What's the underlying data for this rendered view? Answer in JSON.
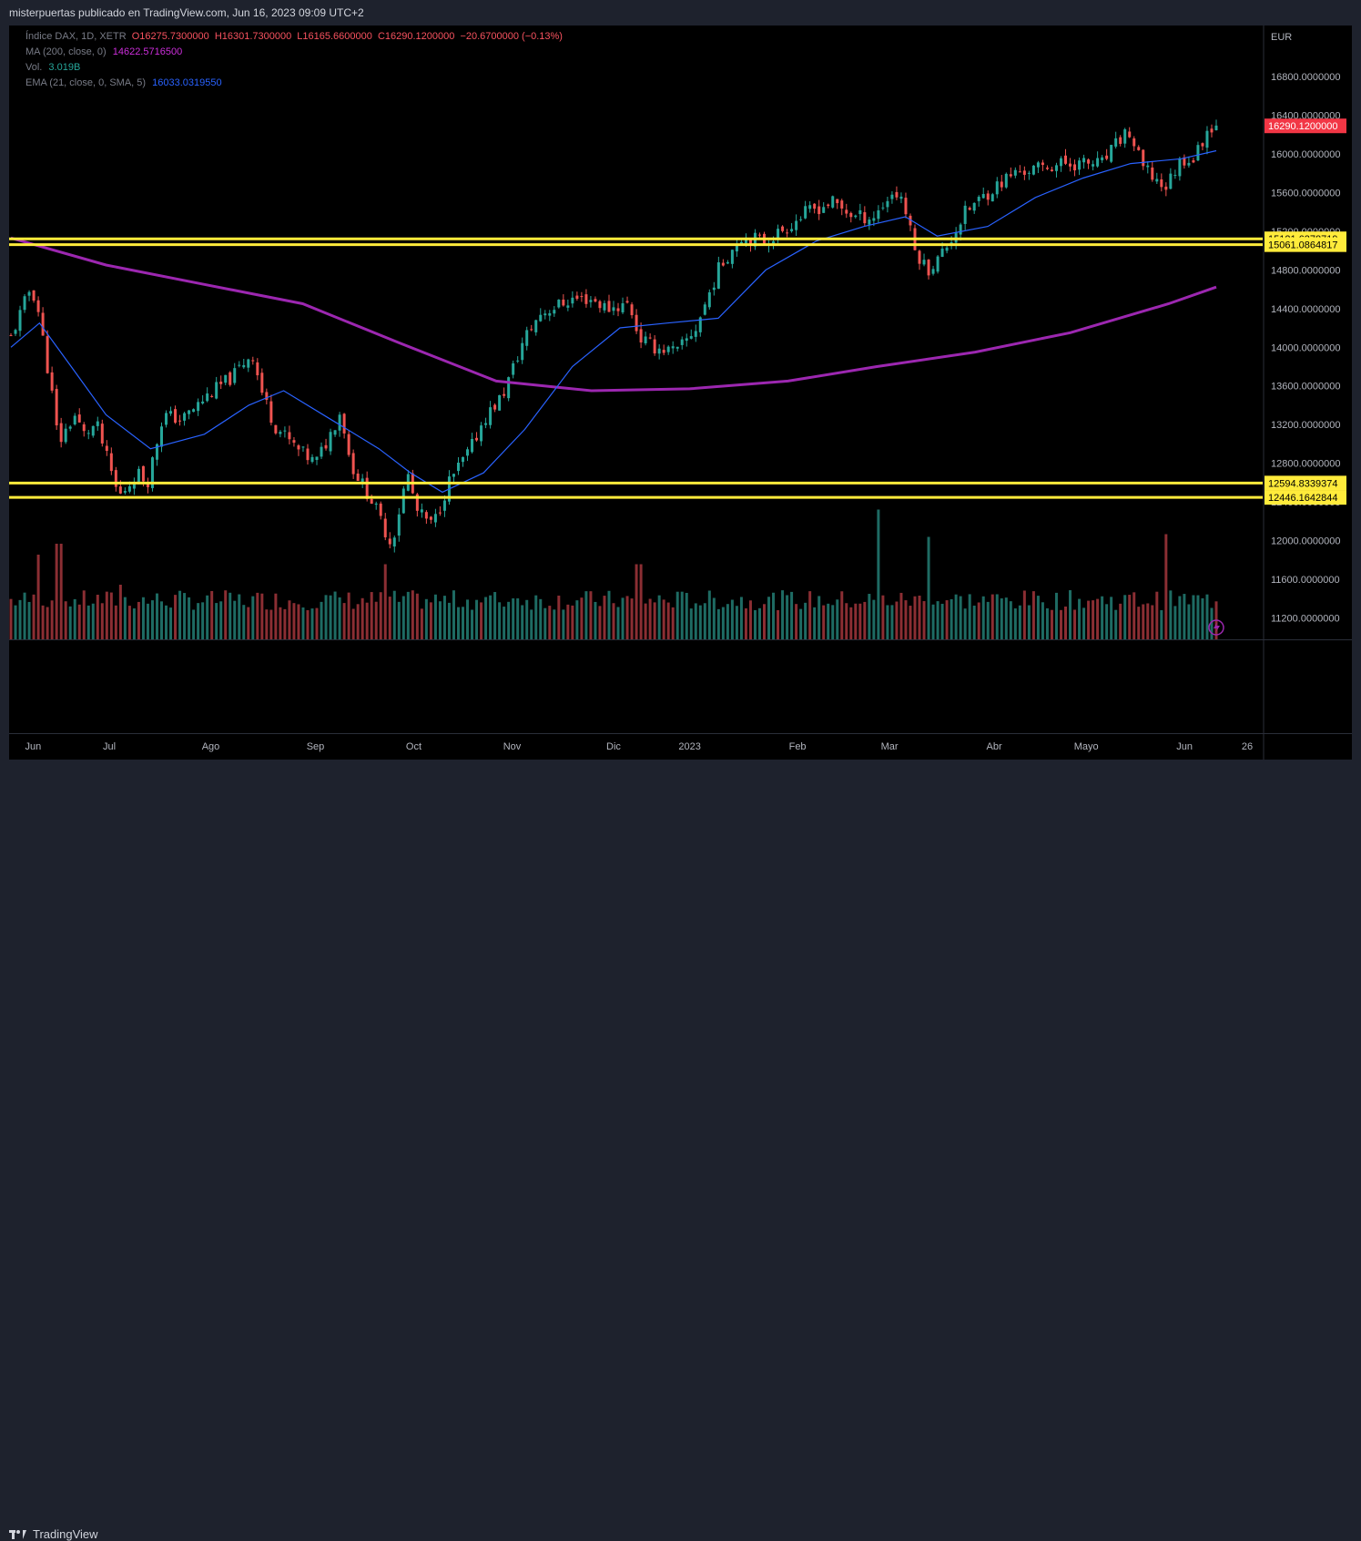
{
  "header": {
    "text": "misterpuertas publicado en TradingView.com, Jun 16, 2023 09:09 UTC+2"
  },
  "legend": {
    "symbol": {
      "label": "Índice DAX, 1D, XETR",
      "values": [
        "O16275.7300000",
        "H16301.7300000",
        "L16165.6600000",
        "C16290.1200000",
        "−20.6700000 (−0.13%)"
      ],
      "color": "#f7525f"
    },
    "ma": {
      "label": "MA (200, close, 0)",
      "value": "14622.5716500",
      "color": "#cc2edb"
    },
    "vol": {
      "label": "Vol.",
      "value": "3.019B",
      "color": "#26a69a"
    },
    "ema": {
      "label": "EMA (21, close, 0, SMA, 5)",
      "value": "16033.0319550",
      "color": "#2962ff"
    }
  },
  "footer": {
    "brand": "TradingView"
  },
  "colors": {
    "up": "#26a69a",
    "down": "#ef5350",
    "vol_up": "#1e6b63",
    "vol_down": "#8b2e33",
    "level": "#ffeb3b",
    "ma200": "#9c27b0",
    "ema21": "#2962ff"
  },
  "chart_data": {
    "type": "candlestick",
    "currency": "EUR",
    "y_ticks": [
      "16800.0000000",
      "16400.0000000",
      "16000.0000000",
      "15600.0000000",
      "15200.0000000",
      "14800.0000000",
      "14400.0000000",
      "14000.0000000",
      "13600.0000000",
      "13200.0000000",
      "12800.0000000",
      "12400.0000000",
      "12000.0000000",
      "11600.0000000",
      "11200.0000000"
    ],
    "x_ticks": [
      "Jun",
      "Jul",
      "Ago",
      "Sep",
      "Oct",
      "Nov",
      "Dic",
      "2023",
      "Feb",
      "Mar",
      "Abr",
      "Mayo",
      "Jun",
      "26"
    ],
    "last_price": "16290.1200000",
    "horizontal_levels": [
      {
        "value": 15121.6378719,
        "label": "15121.6378719"
      },
      {
        "value": 15061.0864817,
        "label": "15061.0864817"
      },
      {
        "value": 12594.8339374,
        "label": "12594.8339374"
      },
      {
        "value": 12446.1642844,
        "label": "12446.1642844"
      }
    ],
    "close_path": [
      [
        "2022-06-01",
        14100
      ],
      [
        "2022-06-07",
        14600
      ],
      [
        "2022-06-09",
        14500
      ],
      [
        "2022-06-14",
        13500
      ],
      [
        "2022-06-16",
        13000
      ],
      [
        "2022-06-21",
        13300
      ],
      [
        "2022-06-24",
        13100
      ],
      [
        "2022-06-28",
        13200
      ],
      [
        "2022-07-05",
        12450
      ],
      [
        "2022-07-11",
        12700
      ],
      [
        "2022-07-14",
        12600
      ],
      [
        "2022-07-19",
        13300
      ],
      [
        "2022-07-25",
        13250
      ],
      [
        "2022-08-02",
        13500
      ],
      [
        "2022-08-10",
        13700
      ],
      [
        "2022-08-16",
        13950
      ],
      [
        "2022-08-19",
        13550
      ],
      [
        "2022-08-23",
        13200
      ],
      [
        "2022-08-30",
        12950
      ],
      [
        "2022-09-05",
        12800
      ],
      [
        "2022-09-09",
        13050
      ],
      [
        "2022-09-13",
        13350
      ],
      [
        "2022-09-16",
        12800
      ],
      [
        "2022-09-23",
        12400
      ],
      [
        "2022-09-29",
        11950
      ],
      [
        "2022-10-04",
        12700
      ],
      [
        "2022-10-07",
        12300
      ],
      [
        "2022-10-12",
        12150
      ],
      [
        "2022-10-17",
        12600
      ],
      [
        "2022-10-24",
        12950
      ],
      [
        "2022-10-28",
        13250
      ],
      [
        "2022-11-03",
        13500
      ],
      [
        "2022-11-10",
        14100
      ],
      [
        "2022-11-15",
        14350
      ],
      [
        "2022-11-25",
        14500
      ],
      [
        "2022-12-01",
        14500
      ],
      [
        "2022-12-06",
        14400
      ],
      [
        "2022-12-13",
        14450
      ],
      [
        "2022-12-16",
        14100
      ],
      [
        "2022-12-21",
        14000
      ],
      [
        "2022-12-28",
        13950
      ],
      [
        "2023-01-03",
        14200
      ],
      [
        "2023-01-10",
        14800
      ],
      [
        "2023-01-17",
        15150
      ],
      [
        "2023-01-25",
        15100
      ],
      [
        "2023-02-01",
        15250
      ],
      [
        "2023-02-07",
        15400
      ],
      [
        "2023-02-15",
        15500
      ],
      [
        "2023-02-22",
        15350
      ],
      [
        "2023-02-28",
        15350
      ],
      [
        "2023-03-06",
        15600
      ],
      [
        "2023-03-09",
        15550
      ],
      [
        "2023-03-13",
        15000
      ],
      [
        "2023-03-17",
        14800
      ],
      [
        "2023-03-20",
        14900
      ],
      [
        "2023-03-24",
        15100
      ],
      [
        "2023-03-29",
        15400
      ],
      [
        "2023-04-05",
        15600
      ],
      [
        "2023-04-13",
        15800
      ],
      [
        "2023-04-21",
        15850
      ],
      [
        "2023-04-28",
        15900
      ],
      [
        "2023-05-05",
        15900
      ],
      [
        "2023-05-11",
        15900
      ],
      [
        "2023-05-19",
        16250
      ],
      [
        "2023-05-24",
        15850
      ],
      [
        "2023-05-31",
        15650
      ],
      [
        "2023-06-05",
        15950
      ],
      [
        "2023-06-09",
        15950
      ],
      [
        "2023-06-14",
        16300
      ],
      [
        "2023-06-16",
        16290
      ]
    ],
    "ma200_path": [
      [
        "2022-06-01",
        15130
      ],
      [
        "2022-07-01",
        14850
      ],
      [
        "2022-08-01",
        14650
      ],
      [
        "2022-09-01",
        14450
      ],
      [
        "2022-10-01",
        14050
      ],
      [
        "2022-11-01",
        13650
      ],
      [
        "2022-12-01",
        13550
      ],
      [
        "2023-01-01",
        13570
      ],
      [
        "2023-02-01",
        13650
      ],
      [
        "2023-03-01",
        13800
      ],
      [
        "2023-04-01",
        13950
      ],
      [
        "2023-05-01",
        14150
      ],
      [
        "2023-06-01",
        14450
      ],
      [
        "2023-06-16",
        14622.57
      ]
    ],
    "ema21_path": [
      [
        "2022-06-01",
        14000
      ],
      [
        "2022-06-10",
        14250
      ],
      [
        "2022-06-20",
        13800
      ],
      [
        "2022-07-01",
        13300
      ],
      [
        "2022-07-15",
        12950
      ],
      [
        "2022-08-01",
        13100
      ],
      [
        "2022-08-15",
        13400
      ],
      [
        "2022-08-26",
        13550
      ],
      [
        "2022-09-10",
        13250
      ],
      [
        "2022-09-25",
        12950
      ],
      [
        "2022-10-05",
        12700
      ],
      [
        "2022-10-15",
        12500
      ],
      [
        "2022-10-28",
        12700
      ],
      [
        "2022-11-10",
        13150
      ],
      [
        "2022-11-25",
        13800
      ],
      [
        "2022-12-10",
        14200
      ],
      [
        "2022-12-25",
        14250
      ],
      [
        "2023-01-10",
        14300
      ],
      [
        "2023-01-25",
        14800
      ],
      [
        "2023-02-10",
        15100
      ],
      [
        "2023-02-25",
        15250
      ],
      [
        "2023-03-10",
        15350
      ],
      [
        "2023-03-20",
        15150
      ],
      [
        "2023-04-05",
        15250
      ],
      [
        "2023-04-20",
        15550
      ],
      [
        "2023-05-05",
        15750
      ],
      [
        "2023-05-20",
        15900
      ],
      [
        "2023-06-05",
        15950
      ],
      [
        "2023-06-16",
        16033.03
      ]
    ],
    "volume_spikes": [
      [
        "2022-06-10",
        0.62
      ],
      [
        "2022-06-16",
        0.7
      ],
      [
        "2022-07-06",
        0.4
      ],
      [
        "2022-09-27",
        0.55
      ],
      [
        "2022-11-07",
        0.3
      ],
      [
        "2022-12-16",
        0.55
      ],
      [
        "2023-03-01",
        0.95
      ],
      [
        "2023-03-17",
        0.75
      ],
      [
        "2023-05-31",
        0.77
      ]
    ]
  }
}
